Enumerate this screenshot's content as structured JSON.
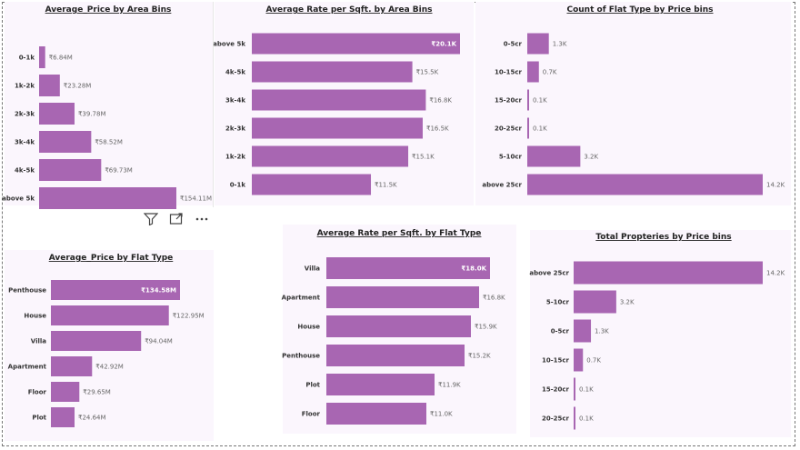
{
  "colors": {
    "bar": "#a866b2",
    "panel_bg": "#fbf6fd"
  },
  "toolbar": {
    "icons": [
      "filter-icon",
      "focus-mode-icon",
      "more-options-icon"
    ]
  },
  "chart_data": [
    {
      "id": "avg-price-area",
      "type": "bar",
      "orientation": "horizontal",
      "title": "Average_Price by Area Bins",
      "categories": [
        "0-1k",
        "1k-2k",
        "2k-3k",
        "3k-4k",
        "4k-5k",
        "above 5k"
      ],
      "values": [
        6.84,
        23.28,
        39.78,
        58.52,
        69.73,
        154.11
      ],
      "labels": [
        "₹6.84M",
        "₹23.28M",
        "₹39.78M",
        "₹58.52M",
        "₹69.73M",
        "₹154.11M"
      ],
      "unit": "M",
      "xlim": [
        0,
        154.11
      ],
      "label_inside_max": false
    },
    {
      "id": "avg-rate-area",
      "type": "bar",
      "orientation": "horizontal",
      "title": "Average Rate per Sqft. by Area Bins",
      "categories": [
        "above 5k",
        "4k-5k",
        "3k-4k",
        "2k-3k",
        "1k-2k",
        "0-1k"
      ],
      "values": [
        20.1,
        15.5,
        16.8,
        16.5,
        15.1,
        11.5
      ],
      "labels": [
        "₹20.1K",
        "₹15.5K",
        "₹16.8K",
        "₹16.5K",
        "₹15.1K",
        "₹11.5K"
      ],
      "unit": "K",
      "xlim": [
        0,
        20.1
      ],
      "label_inside_max": true
    },
    {
      "id": "count-flat-price",
      "type": "bar",
      "orientation": "horizontal",
      "title": "Count of Flat Type by Price bins",
      "categories": [
        "0-5cr",
        "10-15cr",
        "15-20cr",
        "20-25cr",
        "5-10cr",
        "above 25cr"
      ],
      "values": [
        1.3,
        0.7,
        0.1,
        0.1,
        3.2,
        14.2
      ],
      "labels": [
        "1.3K",
        "0.7K",
        "0.1K",
        "0.1K",
        "3.2K",
        "14.2K"
      ],
      "unit": "K",
      "xlim": [
        0,
        14.2
      ],
      "label_inside_max": false
    },
    {
      "id": "avg-price-flat",
      "type": "bar",
      "orientation": "horizontal",
      "title": "Average_Price by Flat Type",
      "categories": [
        "Penthouse",
        "House",
        "Villa",
        "Apartment",
        "Floor",
        "Plot"
      ],
      "values": [
        134.58,
        122.95,
        94.04,
        42.92,
        29.65,
        24.64
      ],
      "labels": [
        "₹134.58M",
        "₹122.95M",
        "₹94.04M",
        "₹42.92M",
        "₹29.65M",
        "₹24.64M"
      ],
      "unit": "M",
      "xlim": [
        0,
        134.58
      ],
      "label_inside_max": true
    },
    {
      "id": "avg-rate-flat",
      "type": "bar",
      "orientation": "horizontal",
      "title": "Average Rate per Sqft. by Flat Type",
      "categories": [
        "Villa",
        "Apartment",
        "House",
        "Penthouse",
        "Plot",
        "Floor"
      ],
      "values": [
        18.0,
        16.8,
        15.9,
        15.2,
        11.9,
        11.0
      ],
      "labels": [
        "₹18.0K",
        "₹16.8K",
        "₹15.9K",
        "₹15.2K",
        "₹11.9K",
        "₹11.0K"
      ],
      "unit": "K",
      "xlim": [
        0,
        18.0
      ],
      "label_inside_max": true
    },
    {
      "id": "total-props-price",
      "type": "bar",
      "orientation": "horizontal",
      "title": "Total Propteries by Price bins",
      "categories": [
        "above 25cr",
        "5-10cr",
        "0-5cr",
        "10-15cr",
        "15-20cr",
        "20-25cr"
      ],
      "values": [
        14.2,
        3.2,
        1.3,
        0.7,
        0.1,
        0.1
      ],
      "labels": [
        "14.2K",
        "3.2K",
        "1.3K",
        "0.7K",
        "0.1K",
        "0.1K"
      ],
      "unit": "K",
      "xlim": [
        0,
        14.2
      ],
      "label_inside_max": false
    }
  ]
}
